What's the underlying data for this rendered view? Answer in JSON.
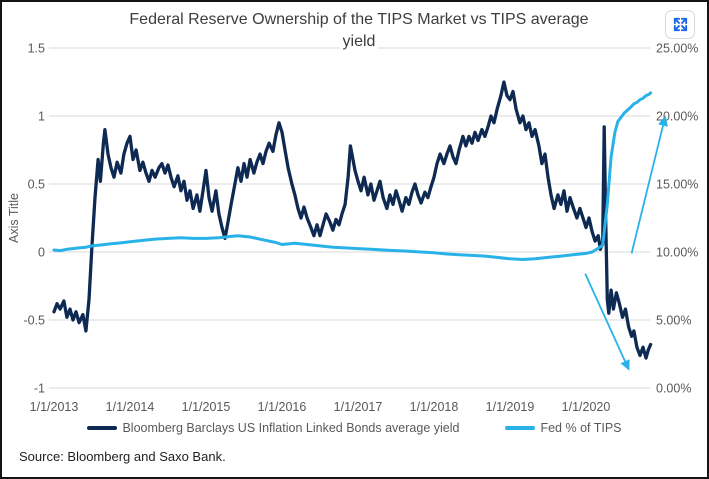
{
  "header": {
    "title_line1": "Federal Reserve Ownership of the TIPS Market vs TIPS average",
    "title_line2": "yield"
  },
  "toolbar": {
    "expand_icon": "expand-arrows-icon"
  },
  "footer": {
    "source_text": "Source: Bloomberg and Saxo Bank."
  },
  "chart_data": {
    "type": "line",
    "title": "Federal Reserve Ownership of the TIPS Market vs TIPS average yield",
    "grid": "horizontal",
    "left_axis": {
      "label": "Axis Title",
      "range": [
        -1,
        1.5
      ],
      "ticks": [
        {
          "label": "1.5",
          "value": 1.5
        },
        {
          "label": "1",
          "value": 1
        },
        {
          "label": "0.5",
          "value": 0.5
        },
        {
          "label": "0",
          "value": 0
        },
        {
          "label": "-0.5",
          "value": -0.5
        },
        {
          "label": "-1",
          "value": -1
        }
      ]
    },
    "right_axis": {
      "range": [
        0,
        25
      ],
      "ticks": [
        {
          "label": "25.00%",
          "value": 25
        },
        {
          "label": "20.00%",
          "value": 20
        },
        {
          "label": "15.00%",
          "value": 15
        },
        {
          "label": "10.00%",
          "value": 10
        },
        {
          "label": "5.00%",
          "value": 5
        },
        {
          "label": "0.00%",
          "value": 0
        }
      ]
    },
    "x_axis": {
      "ticks": [
        {
          "label": "1/1/2013",
          "year": 2013
        },
        {
          "label": "1/1/2014",
          "year": 2014
        },
        {
          "label": "1/1/2015",
          "year": 2015
        },
        {
          "label": "1/1/2016",
          "year": 2016
        },
        {
          "label": "1/1/2017",
          "year": 2017
        },
        {
          "label": "1/1/2018",
          "year": 2018
        },
        {
          "label": "1/1/2019",
          "year": 2019
        },
        {
          "label": "1/1/2020",
          "year": 2020
        }
      ]
    },
    "series": [
      {
        "name": "Bloomberg Barclays US Inflation Linked Bonds average yield",
        "color": "#0e2a52",
        "axis": "left",
        "points": [
          [
            2013.0,
            -0.44
          ],
          [
            2013.04,
            -0.38
          ],
          [
            2013.08,
            -0.42
          ],
          [
            2013.13,
            -0.36
          ],
          [
            2013.17,
            -0.48
          ],
          [
            2013.21,
            -0.42
          ],
          [
            2013.25,
            -0.5
          ],
          [
            2013.29,
            -0.44
          ],
          [
            2013.33,
            -0.52
          ],
          [
            2013.38,
            -0.46
          ],
          [
            2013.42,
            -0.58
          ],
          [
            2013.46,
            -0.35
          ],
          [
            2013.5,
            0.05
          ],
          [
            2013.54,
            0.4
          ],
          [
            2013.58,
            0.68
          ],
          [
            2013.61,
            0.52
          ],
          [
            2013.65,
            0.8
          ],
          [
            2013.67,
            0.9
          ],
          [
            2013.71,
            0.72
          ],
          [
            2013.75,
            0.62
          ],
          [
            2013.79,
            0.55
          ],
          [
            2013.83,
            0.66
          ],
          [
            2013.88,
            0.58
          ],
          [
            2013.92,
            0.72
          ],
          [
            2013.96,
            0.8
          ],
          [
            2014.0,
            0.85
          ],
          [
            2014.04,
            0.68
          ],
          [
            2014.08,
            0.75
          ],
          [
            2014.13,
            0.6
          ],
          [
            2014.17,
            0.66
          ],
          [
            2014.21,
            0.58
          ],
          [
            2014.25,
            0.52
          ],
          [
            2014.29,
            0.6
          ],
          [
            2014.33,
            0.55
          ],
          [
            2014.38,
            0.62
          ],
          [
            2014.42,
            0.65
          ],
          [
            2014.46,
            0.58
          ],
          [
            2014.5,
            0.64
          ],
          [
            2014.54,
            0.55
          ],
          [
            2014.58,
            0.48
          ],
          [
            2014.63,
            0.56
          ],
          [
            2014.67,
            0.45
          ],
          [
            2014.71,
            0.52
          ],
          [
            2014.75,
            0.38
          ],
          [
            2014.79,
            0.45
          ],
          [
            2014.83,
            0.32
          ],
          [
            2014.88,
            0.42
          ],
          [
            2014.92,
            0.3
          ],
          [
            2014.96,
            0.45
          ],
          [
            2015.0,
            0.6
          ],
          [
            2015.04,
            0.4
          ],
          [
            2015.08,
            0.3
          ],
          [
            2015.13,
            0.45
          ],
          [
            2015.17,
            0.28
          ],
          [
            2015.21,
            0.18
          ],
          [
            2015.25,
            0.1
          ],
          [
            2015.29,
            0.22
          ],
          [
            2015.33,
            0.35
          ],
          [
            2015.38,
            0.5
          ],
          [
            2015.42,
            0.62
          ],
          [
            2015.46,
            0.52
          ],
          [
            2015.5,
            0.65
          ],
          [
            2015.54,
            0.55
          ],
          [
            2015.58,
            0.68
          ],
          [
            2015.63,
            0.58
          ],
          [
            2015.67,
            0.66
          ],
          [
            2015.71,
            0.72
          ],
          [
            2015.75,
            0.65
          ],
          [
            2015.79,
            0.74
          ],
          [
            2015.83,
            0.8
          ],
          [
            2015.88,
            0.74
          ],
          [
            2015.92,
            0.86
          ],
          [
            2015.96,
            0.95
          ],
          [
            2016.0,
            0.88
          ],
          [
            2016.04,
            0.75
          ],
          [
            2016.08,
            0.62
          ],
          [
            2016.13,
            0.5
          ],
          [
            2016.17,
            0.42
          ],
          [
            2016.21,
            0.32
          ],
          [
            2016.25,
            0.25
          ],
          [
            2016.29,
            0.33
          ],
          [
            2016.33,
            0.25
          ],
          [
            2016.38,
            0.18
          ],
          [
            2016.42,
            0.12
          ],
          [
            2016.46,
            0.2
          ],
          [
            2016.5,
            0.12
          ],
          [
            2016.54,
            0.2
          ],
          [
            2016.58,
            0.28
          ],
          [
            2016.63,
            0.22
          ],
          [
            2016.67,
            0.16
          ],
          [
            2016.71,
            0.24
          ],
          [
            2016.75,
            0.2
          ],
          [
            2016.79,
            0.28
          ],
          [
            2016.83,
            0.35
          ],
          [
            2016.87,
            0.55
          ],
          [
            2016.9,
            0.78
          ],
          [
            2016.96,
            0.6
          ],
          [
            2017.0,
            0.52
          ],
          [
            2017.04,
            0.45
          ],
          [
            2017.08,
            0.55
          ],
          [
            2017.13,
            0.42
          ],
          [
            2017.17,
            0.5
          ],
          [
            2017.21,
            0.38
          ],
          [
            2017.25,
            0.45
          ],
          [
            2017.29,
            0.52
          ],
          [
            2017.33,
            0.4
          ],
          [
            2017.38,
            0.32
          ],
          [
            2017.42,
            0.42
          ],
          [
            2017.46,
            0.35
          ],
          [
            2017.5,
            0.45
          ],
          [
            2017.54,
            0.38
          ],
          [
            2017.58,
            0.3
          ],
          [
            2017.63,
            0.4
          ],
          [
            2017.67,
            0.35
          ],
          [
            2017.71,
            0.44
          ],
          [
            2017.75,
            0.5
          ],
          [
            2017.79,
            0.42
          ],
          [
            2017.83,
            0.36
          ],
          [
            2017.88,
            0.44
          ],
          [
            2017.92,
            0.4
          ],
          [
            2017.96,
            0.48
          ],
          [
            2018.0,
            0.55
          ],
          [
            2018.04,
            0.65
          ],
          [
            2018.08,
            0.72
          ],
          [
            2018.13,
            0.65
          ],
          [
            2018.17,
            0.72
          ],
          [
            2018.21,
            0.78
          ],
          [
            2018.25,
            0.7
          ],
          [
            2018.29,
            0.65
          ],
          [
            2018.33,
            0.75
          ],
          [
            2018.38,
            0.85
          ],
          [
            2018.42,
            0.78
          ],
          [
            2018.46,
            0.85
          ],
          [
            2018.5,
            0.8
          ],
          [
            2018.54,
            0.88
          ],
          [
            2018.58,
            0.82
          ],
          [
            2018.63,
            0.9
          ],
          [
            2018.67,
            0.85
          ],
          [
            2018.71,
            0.92
          ],
          [
            2018.75,
            1.0
          ],
          [
            2018.79,
            0.95
          ],
          [
            2018.83,
            1.05
          ],
          [
            2018.88,
            1.15
          ],
          [
            2018.92,
            1.25
          ],
          [
            2018.96,
            1.15
          ],
          [
            2019.0,
            1.12
          ],
          [
            2019.04,
            1.18
          ],
          [
            2019.08,
            1.05
          ],
          [
            2019.13,
            0.95
          ],
          [
            2019.17,
            1.0
          ],
          [
            2019.21,
            0.9
          ],
          [
            2019.25,
            0.95
          ],
          [
            2019.29,
            0.85
          ],
          [
            2019.33,
            0.9
          ],
          [
            2019.38,
            0.78
          ],
          [
            2019.42,
            0.65
          ],
          [
            2019.46,
            0.72
          ],
          [
            2019.5,
            0.55
          ],
          [
            2019.54,
            0.42
          ],
          [
            2019.58,
            0.32
          ],
          [
            2019.63,
            0.42
          ],
          [
            2019.67,
            0.35
          ],
          [
            2019.71,
            0.45
          ],
          [
            2019.75,
            0.3
          ],
          [
            2019.79,
            0.4
          ],
          [
            2019.83,
            0.33
          ],
          [
            2019.88,
            0.25
          ],
          [
            2019.92,
            0.32
          ],
          [
            2019.96,
            0.25
          ],
          [
            2020.0,
            0.18
          ],
          [
            2020.04,
            0.25
          ],
          [
            2020.08,
            0.15
          ],
          [
            2020.12,
            0.08
          ],
          [
            2020.16,
            0.12
          ],
          [
            2020.19,
            0.02
          ],
          [
            2020.22,
            0.08
          ],
          [
            2020.24,
            0.92
          ],
          [
            2020.26,
            0.2
          ],
          [
            2020.28,
            -0.35
          ],
          [
            2020.3,
            -0.45
          ],
          [
            2020.33,
            -0.28
          ],
          [
            2020.36,
            -0.42
          ],
          [
            2020.4,
            -0.3
          ],
          [
            2020.44,
            -0.38
          ],
          [
            2020.48,
            -0.48
          ],
          [
            2020.52,
            -0.42
          ],
          [
            2020.56,
            -0.55
          ],
          [
            2020.6,
            -0.62
          ],
          [
            2020.63,
            -0.58
          ],
          [
            2020.67,
            -0.7
          ],
          [
            2020.71,
            -0.76
          ],
          [
            2020.75,
            -0.7
          ],
          [
            2020.79,
            -0.78
          ],
          [
            2020.82,
            -0.72
          ],
          [
            2020.85,
            -0.68
          ]
        ]
      },
      {
        "name": "Fed % of TIPS",
        "color": "#29b2e8",
        "axis": "right",
        "points": [
          [
            2013.0,
            10.15
          ],
          [
            2013.08,
            10.1
          ],
          [
            2013.17,
            10.2
          ],
          [
            2013.25,
            10.25
          ],
          [
            2013.33,
            10.3
          ],
          [
            2013.42,
            10.35
          ],
          [
            2013.5,
            10.45
          ],
          [
            2013.58,
            10.5
          ],
          [
            2013.67,
            10.55
          ],
          [
            2013.75,
            10.6
          ],
          [
            2013.83,
            10.65
          ],
          [
            2013.92,
            10.7
          ],
          [
            2014.0,
            10.75
          ],
          [
            2014.17,
            10.85
          ],
          [
            2014.33,
            10.95
          ],
          [
            2014.5,
            11.0
          ],
          [
            2014.67,
            11.05
          ],
          [
            2014.83,
            11.0
          ],
          [
            2015.0,
            11.0
          ],
          [
            2015.17,
            11.05
          ],
          [
            2015.33,
            11.15
          ],
          [
            2015.42,
            11.2
          ],
          [
            2015.58,
            11.1
          ],
          [
            2015.75,
            10.9
          ],
          [
            2015.92,
            10.7
          ],
          [
            2016.0,
            10.55
          ],
          [
            2016.17,
            10.65
          ],
          [
            2016.33,
            10.55
          ],
          [
            2016.5,
            10.45
          ],
          [
            2016.67,
            10.35
          ],
          [
            2016.83,
            10.3
          ],
          [
            2017.0,
            10.25
          ],
          [
            2017.17,
            10.2
          ],
          [
            2017.33,
            10.15
          ],
          [
            2017.5,
            10.1
          ],
          [
            2017.67,
            10.05
          ],
          [
            2017.83,
            10.0
          ],
          [
            2018.0,
            9.95
          ],
          [
            2018.17,
            9.85
          ],
          [
            2018.33,
            9.8
          ],
          [
            2018.5,
            9.75
          ],
          [
            2018.67,
            9.7
          ],
          [
            2018.83,
            9.6
          ],
          [
            2019.0,
            9.5
          ],
          [
            2019.17,
            9.45
          ],
          [
            2019.33,
            9.5
          ],
          [
            2019.5,
            9.6
          ],
          [
            2019.67,
            9.7
          ],
          [
            2019.83,
            9.8
          ],
          [
            2020.0,
            9.9
          ],
          [
            2020.08,
            10.0
          ],
          [
            2020.17,
            10.3
          ],
          [
            2020.22,
            10.5
          ],
          [
            2020.28,
            13.5
          ],
          [
            2020.33,
            17.0
          ],
          [
            2020.38,
            18.8
          ],
          [
            2020.42,
            19.6
          ],
          [
            2020.46,
            19.9
          ],
          [
            2020.5,
            20.2
          ],
          [
            2020.54,
            20.4
          ],
          [
            2020.58,
            20.6
          ],
          [
            2020.63,
            20.9
          ],
          [
            2020.67,
            21.0
          ],
          [
            2020.71,
            21.2
          ],
          [
            2020.75,
            21.3
          ],
          [
            2020.79,
            21.5
          ],
          [
            2020.83,
            21.6
          ],
          [
            2020.85,
            21.7
          ]
        ]
      }
    ],
    "annotations": [
      {
        "type": "arrow",
        "color": "#29b2e8",
        "axis": "right",
        "from": [
          2019.99,
          8.4
        ],
        "to": [
          2020.56,
          1.4
        ]
      },
      {
        "type": "arrow",
        "color": "#29b2e8",
        "axis": "right",
        "from": [
          2020.6,
          9.9
        ],
        "to": [
          2021.04,
          19.9
        ]
      }
    ],
    "legend_position": "bottom"
  },
  "legend": {
    "items": [
      {
        "label": "Bloomberg Barclays US Inflation Linked Bonds average yield",
        "color": "#0e2a52"
      },
      {
        "label": "Fed % of TIPS",
        "color": "#29b2e8"
      }
    ]
  }
}
